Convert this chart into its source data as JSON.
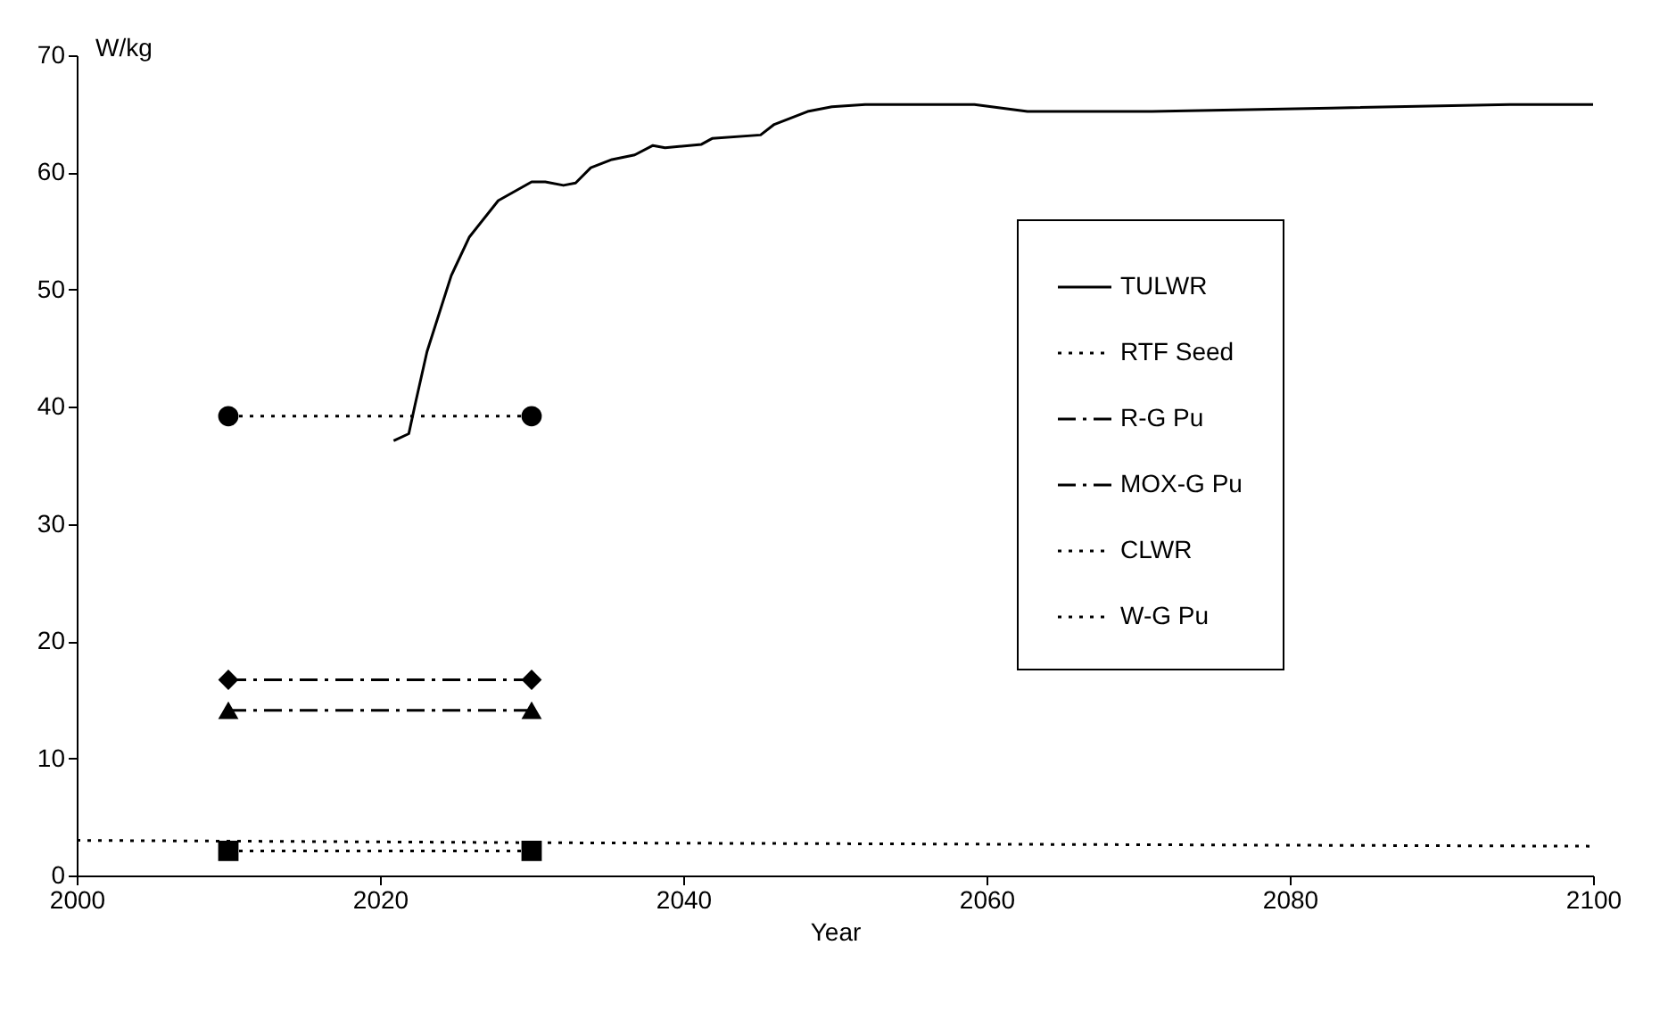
{
  "chart_data": {
    "type": "line",
    "xlabel": "Year",
    "ylabel": "W/kg",
    "xlim": [
      2000,
      2100
    ],
    "xticks": [
      2000,
      2020,
      2040,
      2060,
      2080,
      2100
    ],
    "ylim": [
      0,
      70
    ],
    "yticks": [
      0,
      10,
      20,
      30,
      40,
      50,
      60,
      70
    ],
    "grid": false,
    "legend": "right",
    "series": [
      {
        "name": "TULWR",
        "color": "#000000",
        "line_style": "solid",
        "marker": "none",
        "x": [
          2020.9,
          2021.9,
          2022.3,
          2023.1,
          2024.7,
          2025.9,
          2027.8,
          2030,
          2030.9,
          2032.1,
          2032.9,
          2033.9,
          2035.3,
          2036.8,
          2038,
          2038.8,
          2041.2,
          2041.9,
          2045.1,
          2046,
          2048.2,
          2049.8,
          2052,
          2059.2,
          2062.7,
          2070.9,
          2082.7,
          2094.5,
          2100
        ],
        "values": [
          37.1,
          37.7,
          40.1,
          44.7,
          51.2,
          54.5,
          57.6,
          59.2,
          59.2,
          58.9,
          59.1,
          60.4,
          61.1,
          61.5,
          62.3,
          62.1,
          62.4,
          62.9,
          63.2,
          64.1,
          65.2,
          65.6,
          65.8,
          65.8,
          65.2,
          65.2,
          65.5,
          65.8,
          65.8
        ]
      },
      {
        "name": "RTF Seed",
        "color": "#000000",
        "line_style": "dotted",
        "marker": "circle",
        "x": [
          2010,
          2030
        ],
        "values": [
          39.2,
          39.2
        ]
      },
      {
        "name": "R-G Pu",
        "color": "#000000",
        "line_style": "dashed",
        "marker": "diamond",
        "x": [
          2010,
          2030
        ],
        "values": [
          16.7,
          16.7
        ]
      },
      {
        "name": "MOX-G Pu",
        "color": "#000000",
        "line_style": "dashed",
        "marker": "triangle",
        "x": [
          2010,
          2030
        ],
        "values": [
          14.1,
          14.1
        ]
      },
      {
        "name": "CLWR",
        "color": "#000000",
        "line_style": "dotted",
        "marker": "none",
        "x": [
          2000,
          2030,
          2100
        ],
        "values": [
          3.0,
          2.8,
          2.5
        ]
      },
      {
        "name": "W-G Pu",
        "color": "#000000",
        "line_style": "dotted",
        "marker": "square",
        "x": [
          2010,
          2030
        ],
        "values": [
          2.1,
          2.1
        ]
      }
    ]
  }
}
